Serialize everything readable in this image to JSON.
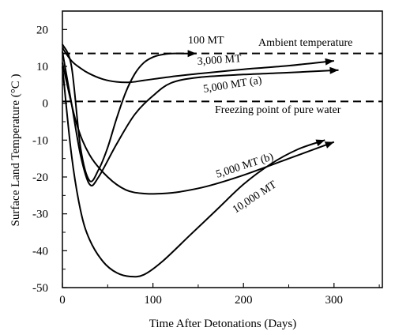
{
  "chart_data": {
    "type": "line",
    "xlabel": "Time After Detonations  (Days)",
    "ylabel": "Surface Land Temperature  (°C )",
    "xlim": [
      0,
      350
    ],
    "ylim": [
      -50,
      25
    ],
    "x_ticks": [
      0,
      100,
      200,
      300
    ],
    "y_ticks": [
      20,
      10,
      0,
      -10,
      -20,
      -30,
      -40,
      -50
    ],
    "grid": false,
    "reference_lines": [
      {
        "name": "Ambient temperature",
        "y": 13.5,
        "style": "dashed"
      },
      {
        "name": "Freezing point of pure water",
        "y": 0.5,
        "style": "dashed"
      }
    ],
    "series": [
      {
        "name": "100 MT",
        "x": [
          0,
          10,
          20,
          30,
          40,
          50,
          60,
          70,
          80,
          90,
          100,
          110,
          120,
          135,
          148
        ],
        "y": [
          16,
          10,
          -12,
          -21,
          -18,
          -12,
          -4,
          3,
          8,
          11,
          12.5,
          13.2,
          13.5,
          13.5,
          13.5
        ]
      },
      {
        "name": "3,000 MT",
        "x": [
          0,
          10,
          20,
          30,
          45,
          60,
          75,
          90,
          120,
          150,
          200,
          250,
          300
        ],
        "y": [
          15,
          11.5,
          9.5,
          8,
          6.5,
          5.8,
          5.7,
          6.2,
          7.2,
          8,
          9.2,
          10.2,
          11.5
        ]
      },
      {
        "name": "5,000 MT (a)",
        "x": [
          0,
          10,
          20,
          30,
          40,
          60,
          80,
          100,
          120,
          150,
          200,
          250,
          305
        ],
        "y": [
          14,
          0,
          -14,
          -22,
          -20,
          -11,
          -3,
          2,
          5.5,
          7,
          7.8,
          8.3,
          9
        ]
      },
      {
        "name": "5,000 MT (b)",
        "x": [
          0,
          15,
          30,
          50,
          70,
          90,
          110,
          130,
          160,
          200,
          250,
          300
        ],
        "y": [
          11,
          -5,
          -14,
          -20,
          -23.5,
          -24.5,
          -24.5,
          -24,
          -22.5,
          -19.5,
          -15,
          -10.5
        ]
      },
      {
        "name": "10,000 MT",
        "x": [
          0,
          10,
          20,
          30,
          45,
          60,
          75,
          90,
          110,
          140,
          170,
          200,
          230,
          260,
          290
        ],
        "y": [
          10,
          -14,
          -29,
          -37,
          -43,
          -46,
          -47,
          -46.5,
          -43,
          -36,
          -29,
          -22,
          -16.5,
          -12.5,
          -10
        ]
      }
    ],
    "annotations": [
      "100 MT",
      "3,000 MT",
      "5,000 MT (a)",
      "5,000 MT (b)",
      "10,000 MT",
      "Ambient temperature",
      "Freezing point of pure water"
    ]
  }
}
